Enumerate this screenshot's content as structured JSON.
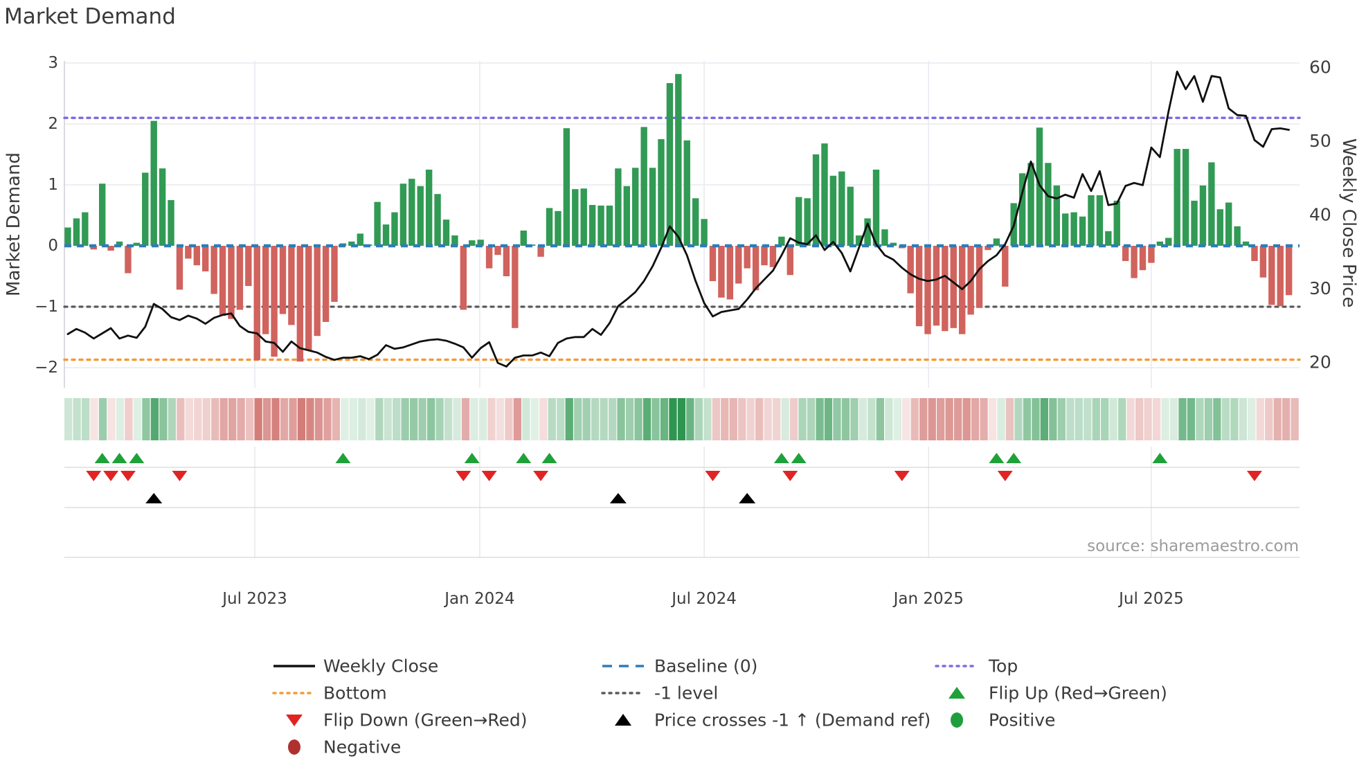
{
  "title": "Market Demand",
  "source_text": "source: sharemaestro.com",
  "colors": {
    "bar_positive": "#319a54",
    "bar_negative": "#d0635d",
    "baseline": "#2e7cb8",
    "top_line": "#7b6ee0",
    "bottom_line": "#f29b38",
    "neg1_line": "#5a5a5a",
    "price_line": "#101010",
    "flip_up": "#1fa13a",
    "flip_down": "#e02424",
    "price_cross": "#000000",
    "positive_dot": "#1f9e3d",
    "negative_dot": "#b03030",
    "grid": "#e9e9f1",
    "divider": "#d8d8d8",
    "heat_green": "#2e9650",
    "heat_red": "#c65550"
  },
  "chart_data": {
    "type": "bar",
    "title": "Market Demand",
    "ylabel_left": "Market Demand",
    "ylabel_right": "Weekly Close Price",
    "ylim_left": [
      -2.35,
      3.0
    ],
    "ylim_right": [
      18.5,
      61.0
    ],
    "grid": true,
    "x_ticks": [
      {
        "label": "Jul 2023",
        "week": 21.74
      },
      {
        "label": "Jan 2024",
        "week": 47.9
      },
      {
        "label": "Jul 2024",
        "week": 74.0
      },
      {
        "label": "Jan 2025",
        "week": 100.1
      },
      {
        "label": "Jul 2025",
        "week": 126.0
      }
    ],
    "y_ticks_left": [
      {
        "label": "3",
        "value": 3
      },
      {
        "label": "2",
        "value": 2
      },
      {
        "label": "1",
        "value": 1
      },
      {
        "label": "0",
        "value": 0
      },
      {
        "label": "−1",
        "value": -1
      },
      {
        "label": "−2",
        "value": -2
      }
    ],
    "y_ticks_right": [
      {
        "label": "60",
        "value": 60
      },
      {
        "label": "50",
        "value": 50
      },
      {
        "label": "40",
        "value": 40
      },
      {
        "label": "30",
        "value": 30
      },
      {
        "label": "20",
        "value": 20
      }
    ],
    "reference_lines": {
      "top": 2.1,
      "baseline": 0,
      "neg1": -1,
      "bottom": -1.87
    },
    "series": [
      {
        "name": "Market Demand",
        "values": [
          0.3,
          0.45,
          0.55,
          -0.06,
          1.02,
          -0.08,
          0.07,
          -0.45,
          0.05,
          1.2,
          2.05,
          1.27,
          0.75,
          -0.72,
          -0.21,
          -0.32,
          -0.42,
          -0.79,
          -1.15,
          -1.2,
          -1.05,
          -0.66,
          -1.88,
          -1.45,
          -1.82,
          -1.12,
          -1.3,
          -1.9,
          -1.72,
          -1.48,
          -1.25,
          -0.92,
          0.04,
          0.07,
          0.2,
          0.02,
          0.72,
          0.35,
          0.55,
          1.02,
          1.1,
          0.98,
          1.25,
          0.85,
          0.43,
          0.17,
          -1.05,
          0.09,
          0.1,
          -0.37,
          -0.15,
          -0.5,
          -1.35,
          0.25,
          0.02,
          -0.18,
          0.62,
          0.57,
          1.93,
          0.93,
          0.94,
          0.67,
          0.66,
          0.66,
          1.27,
          0.98,
          1.28,
          1.95,
          1.28,
          1.75,
          2.67,
          2.82,
          1.73,
          0.78,
          0.44,
          -0.58,
          -0.85,
          -0.88,
          -0.62,
          -0.37,
          -0.73,
          -0.32,
          -0.35,
          0.15,
          -0.48,
          0.8,
          0.78,
          1.5,
          1.68,
          1.15,
          1.22,
          0.97,
          0.17,
          0.45,
          1.25,
          0.27,
          0.05,
          -0.04,
          -0.78,
          -1.32,
          -1.45,
          -1.31,
          -1.4,
          -1.35,
          -1.45,
          -1.13,
          -1.02,
          -0.07,
          0.12,
          -0.67,
          0.7,
          1.19,
          1.36,
          1.94,
          1.36,
          0.99,
          0.53,
          0.55,
          0.48,
          0.83,
          0.83,
          0.24,
          0.74,
          -0.25,
          -0.53,
          -0.4,
          -0.28,
          0.07,
          0.13,
          1.59,
          1.59,
          0.74,
          0.99,
          1.37,
          0.6,
          0.71,
          0.32,
          0.07,
          -0.25,
          -0.52,
          -0.97,
          -0.99,
          -0.81
        ]
      },
      {
        "name": "Weekly Close",
        "values": [
          23.8,
          24.5,
          24.0,
          23.2,
          23.9,
          24.6,
          23.2,
          23.6,
          23.3,
          24.8,
          27.9,
          27.2,
          26.1,
          25.7,
          26.3,
          25.9,
          25.2,
          26.0,
          26.4,
          26.6,
          24.9,
          24.1,
          23.9,
          22.8,
          22.6,
          21.4,
          22.8,
          21.9,
          21.6,
          21.3,
          20.7,
          20.3,
          20.6,
          20.6,
          20.8,
          20.4,
          21.0,
          22.3,
          21.8,
          22.0,
          22.4,
          22.8,
          23.0,
          23.1,
          22.9,
          22.5,
          22.0,
          20.6,
          21.9,
          22.7,
          19.9,
          19.4,
          20.6,
          20.9,
          20.9,
          21.3,
          20.8,
          22.6,
          23.2,
          23.4,
          23.4,
          24.5,
          23.7,
          25.3,
          27.6,
          28.5,
          29.5,
          31.0,
          33.0,
          35.5,
          38.4,
          37.0,
          34.5,
          31.0,
          28.0,
          26.2,
          26.8,
          27.0,
          27.2,
          28.5,
          30.0,
          31.2,
          32.4,
          34.5,
          36.8,
          36.2,
          36.0,
          37.2,
          35.2,
          36.3,
          34.8,
          32.3,
          35.5,
          38.8,
          36.0,
          34.5,
          33.9,
          32.8,
          31.9,
          31.3,
          31.0,
          31.2,
          31.7,
          30.8,
          29.9,
          31.0,
          32.6,
          33.7,
          34.5,
          36.0,
          38.5,
          43.0,
          47.2,
          44.0,
          42.5,
          42.2,
          42.7,
          42.3,
          45.5,
          43.2,
          45.9,
          41.3,
          41.5,
          43.9,
          44.3,
          44.0,
          49.1,
          47.8,
          54.0,
          59.4,
          57.0,
          58.8,
          55.3,
          58.8,
          58.6,
          54.4,
          53.5,
          53.4,
          50.1,
          49.2,
          51.6,
          51.7,
          51.5
        ]
      }
    ],
    "markers": {
      "flip_up_weeks": [
        4,
        6,
        8,
        32,
        47,
        53,
        56,
        83,
        85,
        108,
        110,
        127
      ],
      "flip_down_weeks": [
        3,
        5,
        7,
        13,
        46,
        49,
        55,
        75,
        84,
        97,
        109,
        138
      ],
      "price_cross_weeks": [
        10,
        64,
        79
      ]
    },
    "heatmap": {
      "source": "Market Demand",
      "note": "green positive / red negative intensity strip"
    }
  },
  "legend": {
    "rows": [
      [
        {
          "label": "Weekly Close",
          "swatch": "line-black"
        },
        {
          "label": "Baseline (0)",
          "swatch": "dash-blue"
        },
        {
          "label": "Top",
          "swatch": "dot-purple"
        }
      ],
      [
        {
          "label": "Bottom",
          "swatch": "dot-orange"
        },
        {
          "label": "-1 level",
          "swatch": "dot-gray"
        },
        {
          "label": "Flip Up (Red→Green)",
          "swatch": "tri-up-green"
        }
      ],
      [
        {
          "label": "Flip Down (Green→Red)",
          "swatch": "tri-down-red"
        },
        {
          "label": "Price crosses -1 ↑ (Demand ref)",
          "swatch": "tri-up-black"
        },
        {
          "label": "Positive",
          "swatch": "circle-green"
        }
      ],
      [
        {
          "label": "Negative",
          "swatch": "circle-darkred"
        }
      ]
    ]
  }
}
